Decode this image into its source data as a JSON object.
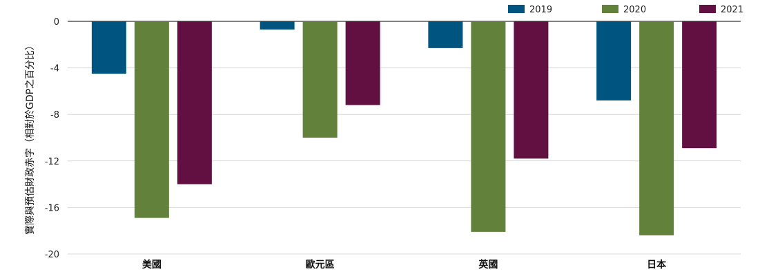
{
  "chart_data": {
    "type": "bar",
    "ylabel": "實際與預估財政赤字（相對於GDP之百分比）",
    "categories": [
      "美國",
      "歐元區",
      "英國",
      "日本"
    ],
    "series": [
      {
        "name": "2019",
        "color": "#005580",
        "values": [
          -4.5,
          -0.7,
          -2.3,
          -6.8
        ]
      },
      {
        "name": "2020",
        "color": "#62823b",
        "values": [
          -16.9,
          -10.0,
          -18.1,
          -18.4
        ]
      },
      {
        "name": "2021",
        "color": "#621042",
        "values": [
          -14.0,
          -7.2,
          -11.8,
          -10.9
        ]
      }
    ],
    "ylim": [
      -20,
      0
    ],
    "yticks": [
      0,
      -4,
      -8,
      -12,
      -16,
      -20
    ],
    "grid": true,
    "legend_position": "top-right"
  }
}
